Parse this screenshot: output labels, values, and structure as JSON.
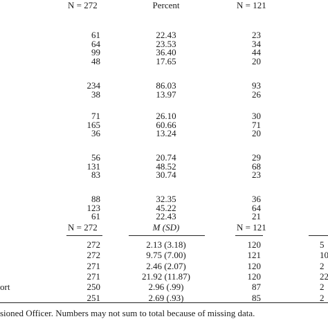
{
  "header": {
    "col1": "N = 272",
    "col2": "Percent",
    "col3": "N = 121"
  },
  "groups": [
    {
      "rows": [
        [
          "61",
          "22.43",
          "23"
        ],
        [
          "64",
          "23.53",
          "34"
        ],
        [
          "99",
          "36.40",
          "44"
        ],
        [
          "48",
          "17.65",
          "20"
        ]
      ]
    },
    {
      "rows": [
        [
          "234",
          "86.03",
          "93"
        ],
        [
          "38",
          "13.97",
          "26"
        ]
      ]
    },
    {
      "rows": [
        [
          "71",
          "26.10",
          "30"
        ],
        [
          "165",
          "60.66",
          "71"
        ],
        [
          "36",
          "13.24",
          "20"
        ]
      ]
    },
    {
      "rows": [
        [
          "56",
          "20.74",
          "29"
        ],
        [
          "131",
          "48.52",
          "68"
        ],
        [
          "83",
          "30.74",
          "23"
        ]
      ]
    },
    {
      "rows": [
        [
          "88",
          "32.35",
          "36"
        ],
        [
          "123",
          "45.22",
          "64"
        ],
        [
          "61",
          "22.43",
          "21"
        ]
      ]
    }
  ],
  "subheader": {
    "col1": "N = 272",
    "col2_italic": "M (SD)",
    "col3": "N = 121"
  },
  "stats": {
    "rows": [
      {
        "label": "",
        "n1": "272",
        "msd": "2.13 (3.18)",
        "n2": "120",
        "right": "5"
      },
      {
        "label": "",
        "n1": "272",
        "msd": "9.75 (7.00)",
        "n2": "121",
        "right": "10"
      },
      {
        "label": "",
        "n1": "271",
        "msd": "2.46 (2.07)",
        "n2": "120",
        "right": "2"
      },
      {
        "label": "",
        "n1": "271",
        "msd": "21.92 (11.87)",
        "n2": "120",
        "right": "22"
      },
      {
        "label": "ort",
        "n1": "250",
        "msd": "2.96 (.99)",
        "n2": "87",
        "right": "2"
      },
      {
        "label": "",
        "n1": "251",
        "msd": "2.69 (.93)",
        "n2": "85",
        "right": "2"
      }
    ]
  },
  "footnote": "sioned Officer. Numbers may not sum to total because of missing data."
}
